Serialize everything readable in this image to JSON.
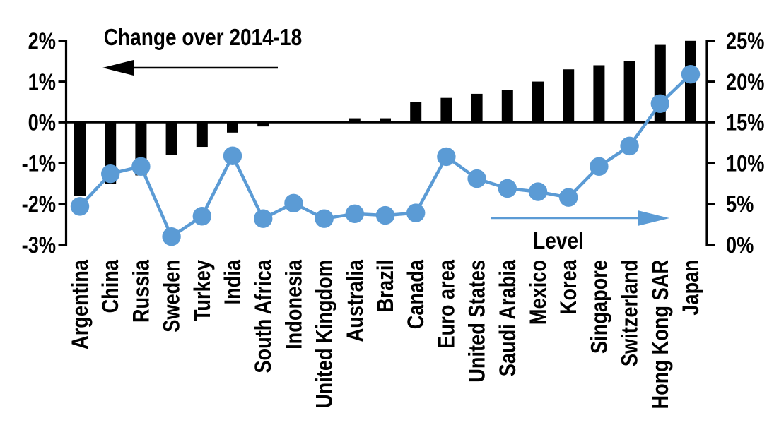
{
  "chart_data": {
    "type": "combo",
    "title": "",
    "categories": [
      "Argentina",
      "China",
      "Russia",
      "Sweden",
      "Turkey",
      "India",
      "South Africa",
      "Indonesia",
      "United Kingdom",
      "Australia",
      "Brazil",
      "Canada",
      "Euro area",
      "United States",
      "Saudi Arabia",
      "Mexico",
      "Korea",
      "Singapore",
      "Switzerland",
      "Hong Kong SAR",
      "Japan"
    ],
    "series": [
      {
        "name": "Change over 2014-18",
        "type": "bar",
        "axis": "left",
        "unit": "%",
        "color": "#000000",
        "values": [
          -1.8,
          -1.5,
          -1.3,
          -0.8,
          -0.6,
          -0.25,
          -0.1,
          0,
          0,
          0.1,
          0.1,
          0.5,
          0.6,
          0.7,
          0.8,
          1.0,
          1.3,
          1.4,
          1.5,
          1.9,
          2.0
        ]
      },
      {
        "name": "Level",
        "type": "line",
        "axis": "right",
        "unit": "%",
        "color": "#5B9BD5",
        "values": [
          4.7,
          8.7,
          9.6,
          1.0,
          3.5,
          10.9,
          3.2,
          5.1,
          3.2,
          3.8,
          3.6,
          3.9,
          10.8,
          8.1,
          6.9,
          6.5,
          5.8,
          9.6,
          12.1,
          17.3,
          20.9
        ]
      }
    ],
    "left_axis": {
      "min": -3,
      "max": 2,
      "tick_values": [
        2,
        1,
        0,
        -1,
        -2,
        -3
      ],
      "tick_labels": [
        "2%",
        "1%",
        "0%",
        "-1%",
        "-2%",
        "-3%"
      ]
    },
    "right_axis": {
      "min": 0,
      "max": 25,
      "tick_values": [
        25,
        20,
        15,
        10,
        5,
        0
      ],
      "tick_labels": [
        "25%",
        "20%",
        "15%",
        "10%",
        "5%",
        "0%"
      ]
    },
    "annotations": {
      "bar_label": "Change over 2014-18",
      "line_label": "Level"
    },
    "legend_position": "none",
    "grid": false
  },
  "colors": {
    "bar": "#000000",
    "line": "#5B9BD5",
    "background": "#FFFFFF",
    "text": "#000000"
  }
}
